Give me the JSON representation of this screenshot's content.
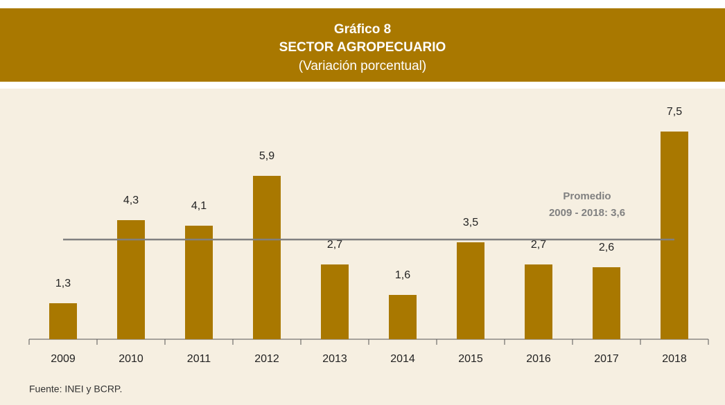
{
  "chart_data": {
    "type": "bar",
    "title": "Gráfico 8",
    "subtitle": "SECTOR AGROPECUARIO",
    "unit_label": "(Variación porcentual)",
    "categories": [
      "2009",
      "2010",
      "2011",
      "2012",
      "2013",
      "2014",
      "2015",
      "2016",
      "2017",
      "2018"
    ],
    "values": [
      1.3,
      4.3,
      4.1,
      5.9,
      2.7,
      1.6,
      3.5,
      2.7,
      2.6,
      7.5
    ],
    "value_labels": [
      "1,3",
      "4,3",
      "4,1",
      "5,9",
      "2,7",
      "1,6",
      "3,5",
      "2,7",
      "2,6",
      "7,5"
    ],
    "color": "#a97800",
    "average": {
      "value": 3.6,
      "label": [
        "Promedio",
        "2009 - 2018: 3,6"
      ],
      "color": "#808080"
    },
    "source": "Fuente: INEI y BCRP."
  }
}
